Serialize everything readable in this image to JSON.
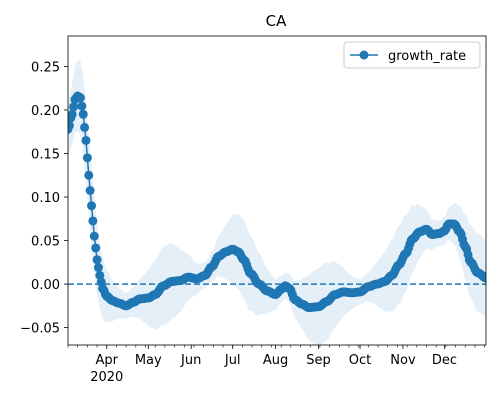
{
  "chart_data": {
    "type": "line",
    "title": "CA",
    "xlabel": "",
    "ylabel": "",
    "x_range": [
      "2020-03-04",
      "2020-12-31"
    ],
    "ylim": [
      -0.07,
      0.285
    ],
    "y_ticks": [
      -0.05,
      0.0,
      0.05,
      0.1,
      0.15,
      0.2,
      0.25
    ],
    "y_tick_labels": [
      "−0.05",
      "0.00",
      "0.05",
      "0.10",
      "0.15",
      "0.20",
      "0.25"
    ],
    "x_ticks": [
      {
        "date": "2020-04-01",
        "label": "Apr",
        "sublabel": "2020"
      },
      {
        "date": "2020-05-01",
        "label": "May"
      },
      {
        "date": "2020-06-01",
        "label": "Jun"
      },
      {
        "date": "2020-07-01",
        "label": "Jul"
      },
      {
        "date": "2020-08-01",
        "label": "Aug"
      },
      {
        "date": "2020-09-01",
        "label": "Sep"
      },
      {
        "date": "2020-10-01",
        "label": "Oct"
      },
      {
        "date": "2020-11-01",
        "label": "Nov"
      },
      {
        "date": "2020-12-01",
        "label": "Dec"
      }
    ],
    "minor_ticks": "weekly",
    "reference_line": {
      "y": 0.0,
      "style": "dashed",
      "color": "#1f77b4"
    },
    "legend": {
      "placement": "top-right",
      "entries": [
        "growth_rate"
      ]
    },
    "grid": false,
    "series": [
      {
        "name": "growth_rate",
        "color": "#1f77b4",
        "marker": "circle",
        "band_color": "#c6dbef",
        "band_half_width": 0.03,
        "key_points": [
          [
            "2020-03-04",
            0.178
          ],
          [
            "2020-03-07",
            0.195
          ],
          [
            "2020-03-09",
            0.212
          ],
          [
            "2020-03-11",
            0.216
          ],
          [
            "2020-03-13",
            0.214
          ],
          [
            "2020-03-15",
            0.195
          ],
          [
            "2020-03-17",
            0.165
          ],
          [
            "2020-03-19",
            0.125
          ],
          [
            "2020-03-21",
            0.09
          ],
          [
            "2020-03-23",
            0.055
          ],
          [
            "2020-03-25",
            0.028
          ],
          [
            "2020-03-27",
            0.01
          ],
          [
            "2020-03-29",
            -0.005
          ],
          [
            "2020-04-01",
            -0.014
          ],
          [
            "2020-04-05",
            -0.019
          ],
          [
            "2020-04-10",
            -0.022
          ],
          [
            "2020-04-15",
            -0.025
          ],
          [
            "2020-04-20",
            -0.021
          ],
          [
            "2020-04-25",
            -0.017
          ],
          [
            "2020-05-01",
            -0.016
          ],
          [
            "2020-05-06",
            -0.012
          ],
          [
            "2020-05-12",
            -0.002
          ],
          [
            "2020-05-18",
            0.003
          ],
          [
            "2020-05-24",
            0.004
          ],
          [
            "2020-05-30",
            0.008
          ],
          [
            "2020-06-05",
            0.006
          ],
          [
            "2020-06-11",
            0.01
          ],
          [
            "2020-06-16",
            0.02
          ],
          [
            "2020-06-21",
            0.032
          ],
          [
            "2020-06-26",
            0.037
          ],
          [
            "2020-07-01",
            0.04
          ],
          [
            "2020-07-05",
            0.037
          ],
          [
            "2020-07-09",
            0.028
          ],
          [
            "2020-07-14",
            0.012
          ],
          [
            "2020-07-20",
            0.0
          ],
          [
            "2020-07-26",
            -0.008
          ],
          [
            "2020-08-01",
            -0.012
          ],
          [
            "2020-08-05",
            -0.006
          ],
          [
            "2020-08-08",
            -0.002
          ],
          [
            "2020-08-11",
            -0.005
          ],
          [
            "2020-08-15",
            -0.018
          ],
          [
            "2020-08-20",
            -0.023
          ],
          [
            "2020-08-25",
            -0.027
          ],
          [
            "2020-09-01",
            -0.026
          ],
          [
            "2020-09-07",
            -0.02
          ],
          [
            "2020-09-13",
            -0.012
          ],
          [
            "2020-09-19",
            -0.009
          ],
          [
            "2020-09-25",
            -0.01
          ],
          [
            "2020-10-01",
            -0.009
          ],
          [
            "2020-10-07",
            -0.003
          ],
          [
            "2020-10-13",
            0.0
          ],
          [
            "2020-10-19",
            0.003
          ],
          [
            "2020-10-24",
            0.01
          ],
          [
            "2020-10-29",
            0.022
          ],
          [
            "2020-11-03",
            0.035
          ],
          [
            "2020-11-08",
            0.052
          ],
          [
            "2020-11-13",
            0.06
          ],
          [
            "2020-11-18",
            0.063
          ],
          [
            "2020-11-22",
            0.057
          ],
          [
            "2020-11-27",
            0.058
          ],
          [
            "2020-12-01",
            0.061
          ],
          [
            "2020-12-04",
            0.069
          ],
          [
            "2020-12-08",
            0.069
          ],
          [
            "2020-12-12",
            0.06
          ],
          [
            "2020-12-16",
            0.043
          ],
          [
            "2020-12-20",
            0.025
          ],
          [
            "2020-12-25",
            0.013
          ],
          [
            "2020-12-31",
            0.007
          ]
        ]
      }
    ]
  }
}
